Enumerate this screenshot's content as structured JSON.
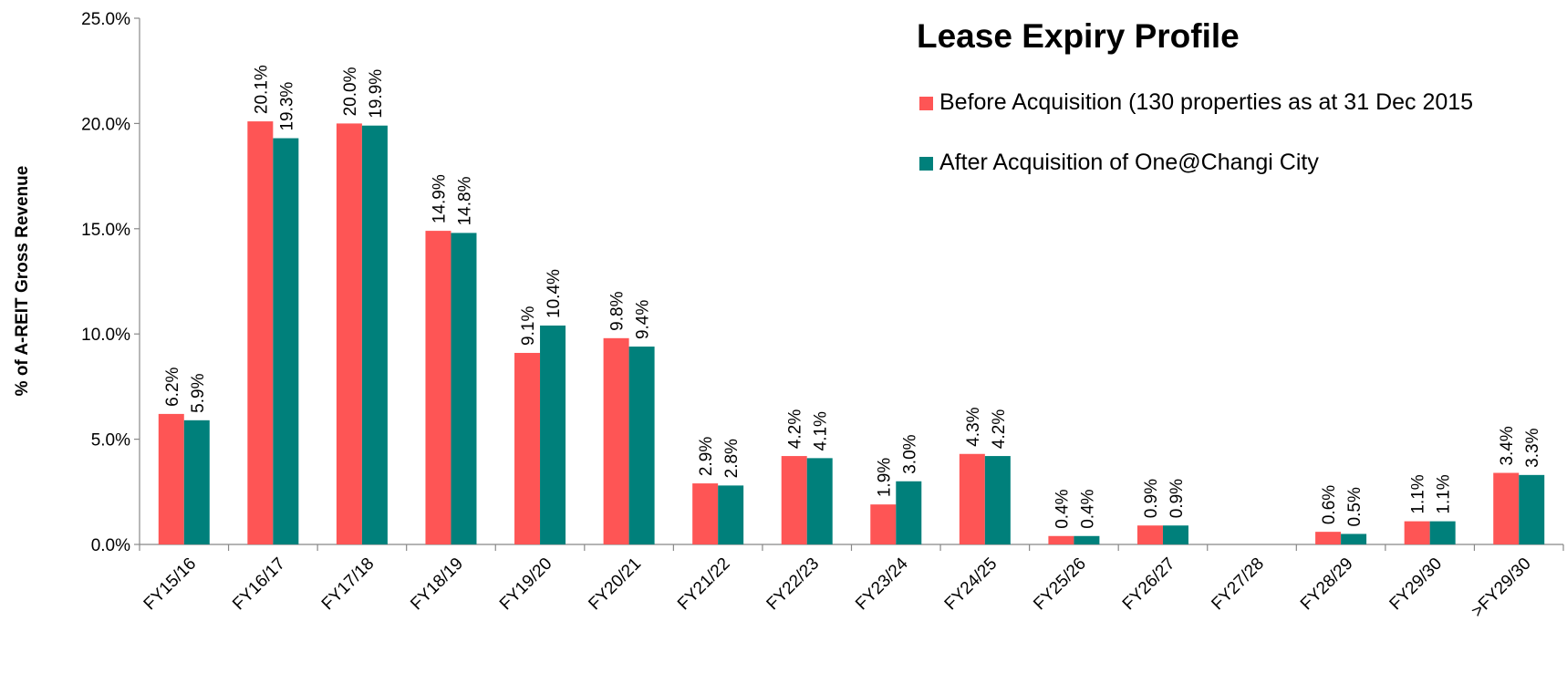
{
  "chart_data": {
    "type": "bar",
    "title": "Lease Expiry Profile",
    "y_label": "% of A-REIT Gross Revenue",
    "categories": [
      "FY15/16",
      "FY16/17",
      "FY17/18",
      "FY18/19",
      "FY19/20",
      "FY20/21",
      "FY21/22",
      "FY22/23",
      "FY23/24",
      "FY24/25",
      "FY25/26",
      "FY26/27",
      "FY27/28",
      "FY28/29",
      "FY29/30",
      ">FY29/30"
    ],
    "series": [
      {
        "name": "Before Acquisition (130 properties as at 31 Dec 2015",
        "color": "#fe5555",
        "values": [
          6.2,
          20.1,
          20.0,
          14.9,
          9.1,
          9.8,
          2.9,
          4.2,
          1.9,
          4.3,
          0.4,
          0.9,
          null,
          0.6,
          1.1,
          3.4
        ],
        "value_labels": [
          "6.2%",
          "20.1%",
          "20.0%",
          "14.9%",
          "9.1%",
          "9.8%",
          "2.9%",
          "4.2%",
          "1.9%",
          "4.3%",
          "0.4%",
          "0.9%",
          null,
          "0.6%",
          "1.1%",
          "3.4%"
        ]
      },
      {
        "name": "After Acquisition of One@Changi City",
        "color": "#00807b",
        "values": [
          5.9,
          19.3,
          19.9,
          14.8,
          10.4,
          9.4,
          2.8,
          4.1,
          3.0,
          4.2,
          0.4,
          0.9,
          null,
          0.5,
          1.1,
          3.3
        ],
        "value_labels": [
          "5.9%",
          "19.3%",
          "19.9%",
          "14.8%",
          "10.4%",
          "9.4%",
          "2.8%",
          "4.1%",
          "3.0%",
          "4.2%",
          "0.4%",
          "0.9%",
          null,
          "0.5%",
          "1.1%",
          "3.3%"
        ]
      }
    ],
    "ylim": [
      0,
      25
    ],
    "yticks": [
      {
        "value": 0,
        "label": "0.0%"
      },
      {
        "value": 5,
        "label": "5.0%"
      },
      {
        "value": 10,
        "label": "10.0%"
      },
      {
        "value": 15,
        "label": "15.0%"
      },
      {
        "value": 20,
        "label": "20.0%"
      },
      {
        "value": 25,
        "label": "25.0%"
      }
    ],
    "grid": false
  }
}
